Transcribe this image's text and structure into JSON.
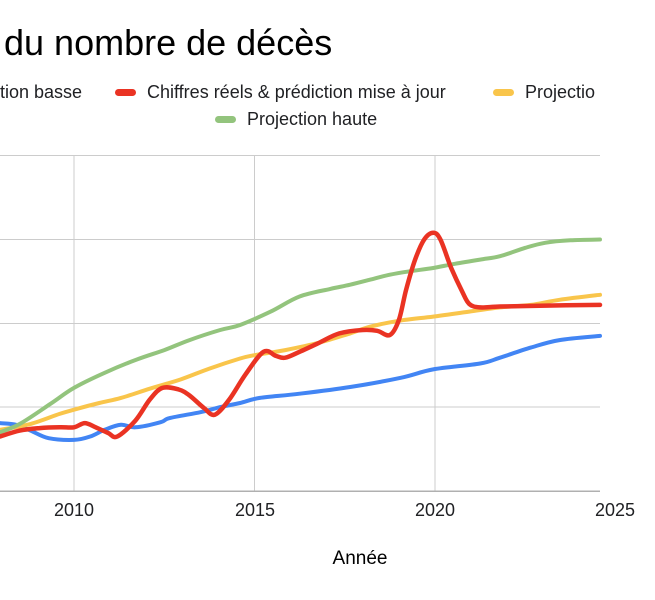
{
  "title": "du nombre de décès",
  "legend": {
    "position": "top",
    "row1": [
      {
        "label": "tion basse",
        "swatch_color": null,
        "note": "swatch cropped off left edge"
      },
      {
        "label": "Chiffres réels & prédiction mise à jour",
        "swatch_color": "#ea3323"
      },
      {
        "label": "Projectio",
        "swatch_color": "#f9c54b",
        "note": "label cropped at right edge"
      }
    ],
    "row2": [
      {
        "label": "Projection haute",
        "swatch_color": "#93c47d"
      }
    ]
  },
  "chart_data": {
    "type": "line",
    "title": "du nombre de décès",
    "xlabel": "Année",
    "x_axis": {
      "title": "Année",
      "tick_labels": [
        "2010",
        "2015",
        "2020",
        "2025"
      ],
      "tick_years": [
        2010,
        2015,
        2020,
        2025
      ],
      "visible_year_range": [
        2008,
        2024.6
      ],
      "last_tick_partially_visible": true
    },
    "y_axis": {
      "tick_labels_visible": false,
      "units": "gridline units above baseline (y-axis labels cropped out of frame)",
      "gridlines_at": [
        1,
        2,
        3,
        4
      ],
      "baseline": 0
    },
    "grid": true,
    "legend_position": "top",
    "style": {
      "background": "#ffffff",
      "gridline_color": "#cccccc",
      "axis_color": "#b0b0b0",
      "line_width": 4,
      "red_line_width": 4.5
    },
    "series": [
      {
        "name": "tion basse",
        "color": "#4285f4",
        "points": [
          [
            2007.95,
            0.81
          ],
          [
            2008.4,
            0.79
          ],
          [
            2008.8,
            0.72
          ],
          [
            2009.3,
            0.63
          ],
          [
            2010,
            0.61
          ],
          [
            2010.45,
            0.65
          ],
          [
            2010.85,
            0.73
          ],
          [
            2011.3,
            0.79
          ],
          [
            2011.7,
            0.76
          ],
          [
            2012.4,
            0.82
          ],
          [
            2012.65,
            0.87
          ],
          [
            2013.5,
            0.94
          ],
          [
            2014.05,
            1.0
          ],
          [
            2014.6,
            1.05
          ],
          [
            2015.15,
            1.11
          ],
          [
            2016.25,
            1.16
          ],
          [
            2017.65,
            1.24
          ],
          [
            2019.05,
            1.35
          ],
          [
            2019.95,
            1.45
          ],
          [
            2021.25,
            1.52
          ],
          [
            2021.8,
            1.59
          ],
          [
            2022.65,
            1.71
          ],
          [
            2023.45,
            1.8
          ],
          [
            2024.57,
            1.85
          ]
        ]
      },
      {
        "name": "Projectio",
        "color": "#f9c54b",
        "points": [
          [
            2007.95,
            0.73
          ],
          [
            2008.8,
            0.8
          ],
          [
            2009.6,
            0.92
          ],
          [
            2010,
            0.97
          ],
          [
            2010.7,
            1.05
          ],
          [
            2011.3,
            1.11
          ],
          [
            2012.1,
            1.22
          ],
          [
            2012.95,
            1.33
          ],
          [
            2013.75,
            1.46
          ],
          [
            2014.6,
            1.58
          ],
          [
            2015,
            1.62
          ],
          [
            2015.85,
            1.68
          ],
          [
            2016.8,
            1.77
          ],
          [
            2017.65,
            1.88
          ],
          [
            2018.2,
            1.96
          ],
          [
            2019,
            2.03
          ],
          [
            2019.95,
            2.08
          ],
          [
            2020.95,
            2.14
          ],
          [
            2021.8,
            2.19
          ],
          [
            2022.65,
            2.22
          ],
          [
            2023.45,
            2.28
          ],
          [
            2024.57,
            2.34
          ]
        ]
      },
      {
        "name": "Projection haute",
        "color": "#93c47d",
        "points": [
          [
            2007.95,
            0.7
          ],
          [
            2008.5,
            0.8
          ],
          [
            2009.35,
            1.04
          ],
          [
            2010,
            1.23
          ],
          [
            2010.85,
            1.41
          ],
          [
            2011.75,
            1.57
          ],
          [
            2012.5,
            1.68
          ],
          [
            2013.2,
            1.8
          ],
          [
            2014.05,
            1.92
          ],
          [
            2014.6,
            1.98
          ],
          [
            2015.45,
            2.14
          ],
          [
            2016.25,
            2.32
          ],
          [
            2017.1,
            2.41
          ],
          [
            2017.65,
            2.46
          ],
          [
            2018.2,
            2.52
          ],
          [
            2018.75,
            2.58
          ],
          [
            2019.3,
            2.62
          ],
          [
            2019.95,
            2.66
          ],
          [
            2020.55,
            2.71
          ],
          [
            2021.25,
            2.76
          ],
          [
            2021.8,
            2.8
          ],
          [
            2022.5,
            2.9
          ],
          [
            2023.05,
            2.96
          ],
          [
            2023.75,
            2.99
          ],
          [
            2024.57,
            3.0
          ]
        ]
      },
      {
        "name": "Chiffres réels & prédiction mise à jour",
        "color": "#ea3323",
        "points": [
          [
            2007.95,
            0.65
          ],
          [
            2008.5,
            0.72
          ],
          [
            2009.05,
            0.75
          ],
          [
            2009.6,
            0.76
          ],
          [
            2010,
            0.76
          ],
          [
            2010.3,
            0.81
          ],
          [
            2010.6,
            0.76
          ],
          [
            2010.95,
            0.69
          ],
          [
            2011.2,
            0.65
          ],
          [
            2011.7,
            0.84
          ],
          [
            2012.1,
            1.09
          ],
          [
            2012.45,
            1.23
          ],
          [
            2012.9,
            1.21
          ],
          [
            2013.2,
            1.14
          ],
          [
            2013.6,
            0.99
          ],
          [
            2013.9,
            0.91
          ],
          [
            2014.3,
            1.09
          ],
          [
            2014.75,
            1.39
          ],
          [
            2015.25,
            1.66
          ],
          [
            2015.6,
            1.61
          ],
          [
            2015.85,
            1.59
          ],
          [
            2016.25,
            1.66
          ],
          [
            2016.8,
            1.77
          ],
          [
            2017.35,
            1.88
          ],
          [
            2018,
            1.92
          ],
          [
            2018.4,
            1.91
          ],
          [
            2018.75,
            1.86
          ],
          [
            2019,
            2.04
          ],
          [
            2019.2,
            2.4
          ],
          [
            2019.45,
            2.76
          ],
          [
            2019.7,
            3.0
          ],
          [
            2019.95,
            3.08
          ],
          [
            2020.15,
            3.0
          ],
          [
            2020.45,
            2.66
          ],
          [
            2020.75,
            2.38
          ],
          [
            2020.95,
            2.23
          ],
          [
            2021.25,
            2.19
          ],
          [
            2021.8,
            2.2
          ],
          [
            2022.9,
            2.21
          ],
          [
            2024.57,
            2.22
          ]
        ]
      }
    ]
  }
}
